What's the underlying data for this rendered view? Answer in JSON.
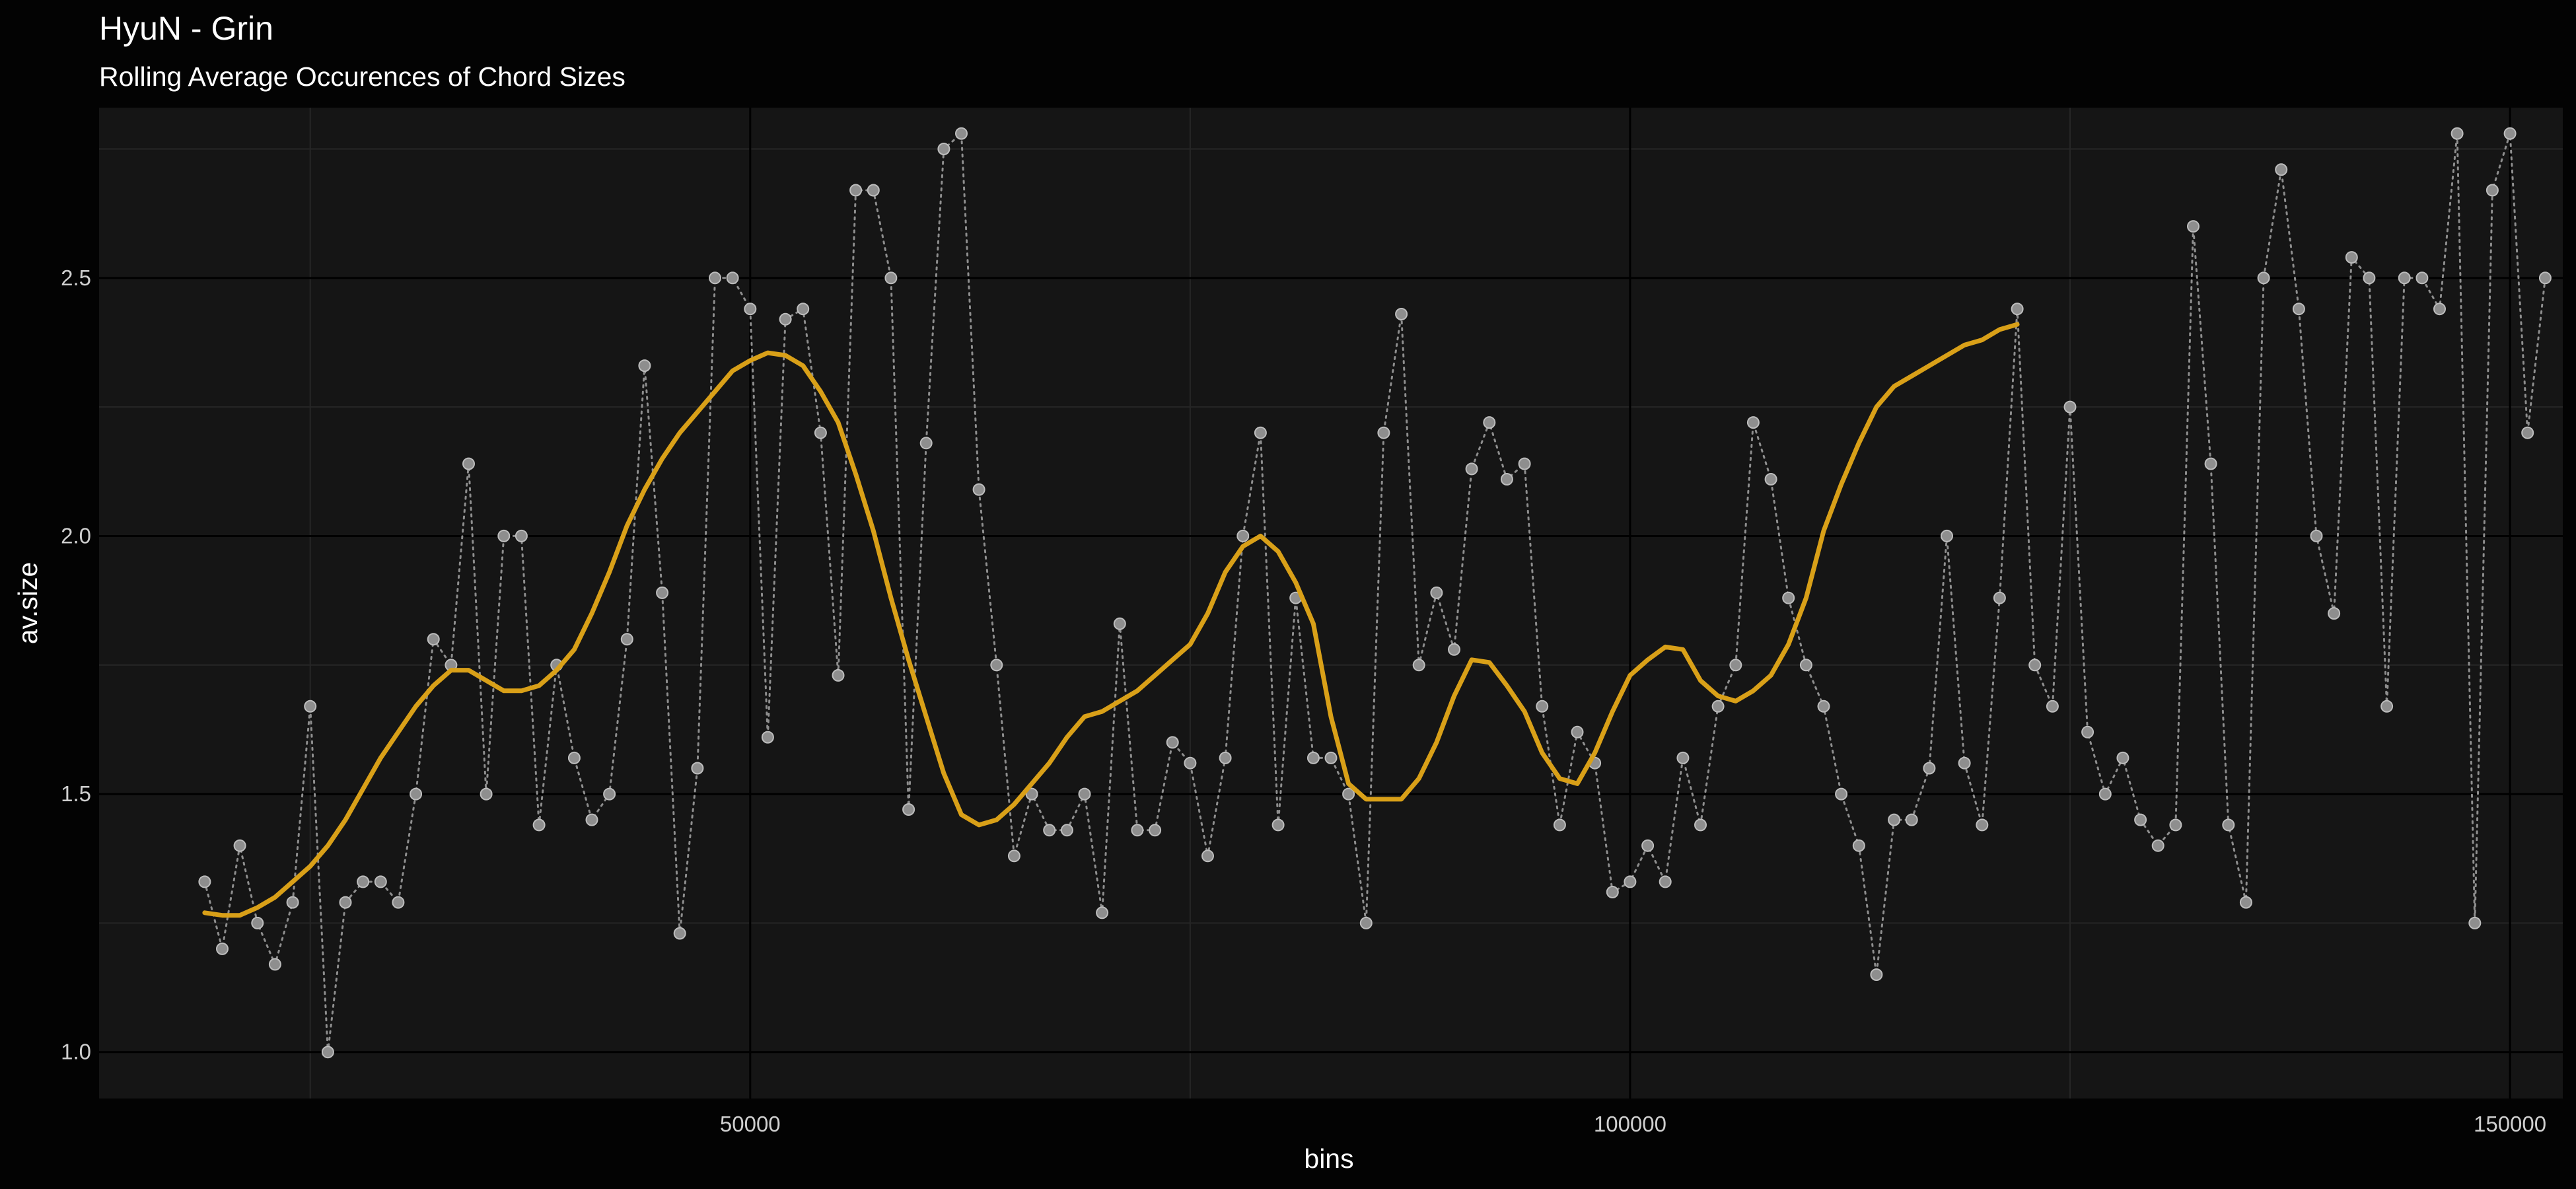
{
  "chart_data": {
    "type": "line",
    "title": "HyuN - Grin",
    "subtitle": "Rolling Average Occurences of Chord Sizes",
    "xlabel": "bins",
    "ylabel": "av.size",
    "xlim": [
      13000,
      153000
    ],
    "ylim": [
      0.91,
      2.83
    ],
    "x_ticks": [
      {
        "value": 50000,
        "label": "50000"
      },
      {
        "value": 100000,
        "label": "100000"
      },
      {
        "value": 150000,
        "label": "150000"
      }
    ],
    "x_minor_ticks": [
      25000,
      75000,
      125000
    ],
    "y_ticks": [
      {
        "value": 1.0,
        "label": "1.0"
      },
      {
        "value": 1.5,
        "label": "1.5"
      },
      {
        "value": 2.0,
        "label": "2.0"
      },
      {
        "value": 2.5,
        "label": "2.5"
      }
    ],
    "y_minor_ticks": [
      1.25,
      1.75,
      2.25,
      2.75
    ],
    "grid": true,
    "theme": {
      "page_background": "#030303",
      "panel_background": "#151515",
      "grid_major": "#000000",
      "grid_minor": "#262626",
      "points_color": "#8e8e8e",
      "smooth_color": "#d9a018"
    },
    "series": [
      {
        "style": "dotted line with points",
        "color": "#8e8e8e",
        "points": [
          [
            19000,
            1.33
          ],
          [
            20000,
            1.2
          ],
          [
            21000,
            1.4
          ],
          [
            22000,
            1.25
          ],
          [
            23000,
            1.17
          ],
          [
            24000,
            1.29
          ],
          [
            25000,
            1.67
          ],
          [
            26000,
            1.0
          ],
          [
            27000,
            1.29
          ],
          [
            28000,
            1.33
          ],
          [
            29000,
            1.33
          ],
          [
            30000,
            1.29
          ],
          [
            31000,
            1.5
          ],
          [
            32000,
            1.8
          ],
          [
            33000,
            1.75
          ],
          [
            34000,
            2.14
          ],
          [
            35000,
            1.5
          ],
          [
            36000,
            2.0
          ],
          [
            37000,
            2.0
          ],
          [
            38000,
            1.44
          ],
          [
            39000,
            1.75
          ],
          [
            40000,
            1.57
          ],
          [
            41000,
            1.45
          ],
          [
            42000,
            1.5
          ],
          [
            43000,
            1.8
          ],
          [
            44000,
            2.33
          ],
          [
            45000,
            1.89
          ],
          [
            46000,
            1.23
          ],
          [
            47000,
            1.55
          ],
          [
            48000,
            2.5
          ],
          [
            49000,
            2.5
          ],
          [
            50000,
            2.44
          ],
          [
            51000,
            1.61
          ],
          [
            52000,
            2.42
          ],
          [
            53000,
            2.44
          ],
          [
            54000,
            2.2
          ],
          [
            55000,
            1.73
          ],
          [
            56000,
            2.67
          ],
          [
            57000,
            2.67
          ],
          [
            58000,
            2.5
          ],
          [
            59000,
            1.47
          ],
          [
            60000,
            2.18
          ],
          [
            61000,
            2.75
          ],
          [
            62000,
            2.78
          ],
          [
            63000,
            2.09
          ],
          [
            64000,
            1.75
          ],
          [
            65000,
            1.38
          ],
          [
            66000,
            1.5
          ],
          [
            67000,
            1.43
          ],
          [
            68000,
            1.43
          ],
          [
            69000,
            1.5
          ],
          [
            70000,
            1.27
          ],
          [
            71000,
            1.83
          ],
          [
            72000,
            1.43
          ],
          [
            73000,
            1.43
          ],
          [
            74000,
            1.6
          ],
          [
            75000,
            1.56
          ],
          [
            76000,
            1.38
          ],
          [
            77000,
            1.57
          ],
          [
            78000,
            2.0
          ],
          [
            79000,
            2.2
          ],
          [
            80000,
            1.44
          ],
          [
            81000,
            1.88
          ],
          [
            82000,
            1.57
          ],
          [
            83000,
            1.57
          ],
          [
            84000,
            1.5
          ],
          [
            85000,
            1.25
          ],
          [
            86000,
            2.2
          ],
          [
            87000,
            2.43
          ],
          [
            88000,
            1.75
          ],
          [
            89000,
            1.89
          ],
          [
            90000,
            1.78
          ],
          [
            91000,
            2.13
          ],
          [
            92000,
            2.22
          ],
          [
            93000,
            2.11
          ],
          [
            94000,
            2.14
          ],
          [
            95000,
            1.67
          ],
          [
            96000,
            1.44
          ],
          [
            97000,
            1.62
          ],
          [
            98000,
            1.56
          ],
          [
            99000,
            1.31
          ],
          [
            100000,
            1.33
          ],
          [
            101000,
            1.4
          ],
          [
            102000,
            1.33
          ],
          [
            103000,
            1.57
          ],
          [
            104000,
            1.44
          ],
          [
            105000,
            1.67
          ],
          [
            106000,
            1.75
          ],
          [
            107000,
            2.22
          ],
          [
            108000,
            2.11
          ],
          [
            109000,
            1.88
          ],
          [
            110000,
            1.75
          ],
          [
            111000,
            1.67
          ],
          [
            112000,
            1.5
          ],
          [
            113000,
            1.4
          ],
          [
            114000,
            1.15
          ],
          [
            115000,
            1.45
          ],
          [
            116000,
            1.45
          ],
          [
            117000,
            1.55
          ],
          [
            118000,
            2.0
          ],
          [
            119000,
            1.56
          ],
          [
            120000,
            1.44
          ],
          [
            121000,
            1.88
          ],
          [
            122000,
            2.44
          ],
          [
            123000,
            1.75
          ],
          [
            124000,
            1.67
          ],
          [
            125000,
            2.25
          ],
          [
            126000,
            1.62
          ],
          [
            127000,
            1.5
          ],
          [
            128000,
            1.57
          ],
          [
            129000,
            1.45
          ],
          [
            130000,
            1.4
          ],
          [
            131000,
            1.44
          ],
          [
            132000,
            2.6
          ],
          [
            133000,
            2.14
          ],
          [
            134000,
            1.44
          ],
          [
            135000,
            1.29
          ],
          [
            136000,
            2.5
          ],
          [
            137000,
            2.71
          ],
          [
            138000,
            2.44
          ],
          [
            139000,
            2.0
          ],
          [
            140000,
            1.85
          ],
          [
            141000,
            2.54
          ],
          [
            142000,
            2.5
          ],
          [
            143000,
            1.67
          ],
          [
            144000,
            2.5
          ],
          [
            145000,
            2.5
          ],
          [
            146000,
            2.44
          ],
          [
            147000,
            2.78
          ],
          [
            148000,
            1.25
          ],
          [
            149000,
            2.67
          ],
          [
            150000,
            2.78
          ],
          [
            151000,
            2.2
          ],
          [
            152000,
            2.5
          ]
        ]
      },
      {
        "style": "smoothed solid line",
        "color": "#d9a018",
        "points": [
          [
            19000,
            1.27
          ],
          [
            20000,
            1.265
          ],
          [
            21000,
            1.265
          ],
          [
            22000,
            1.28
          ],
          [
            23000,
            1.3
          ],
          [
            24000,
            1.33
          ],
          [
            25000,
            1.36
          ],
          [
            26000,
            1.4
          ],
          [
            27000,
            1.45
          ],
          [
            28000,
            1.51
          ],
          [
            29000,
            1.57
          ],
          [
            30000,
            1.62
          ],
          [
            31000,
            1.67
          ],
          [
            32000,
            1.71
          ],
          [
            33000,
            1.74
          ],
          [
            34000,
            1.74
          ],
          [
            35000,
            1.72
          ],
          [
            36000,
            1.7
          ],
          [
            37000,
            1.7
          ],
          [
            38000,
            1.71
          ],
          [
            39000,
            1.74
          ],
          [
            40000,
            1.78
          ],
          [
            41000,
            1.85
          ],
          [
            42000,
            1.93
          ],
          [
            43000,
            2.02
          ],
          [
            44000,
            2.09
          ],
          [
            45000,
            2.15
          ],
          [
            46000,
            2.2
          ],
          [
            47000,
            2.24
          ],
          [
            48000,
            2.28
          ],
          [
            49000,
            2.32
          ],
          [
            50000,
            2.34
          ],
          [
            51000,
            2.355
          ],
          [
            52000,
            2.35
          ],
          [
            53000,
            2.33
          ],
          [
            54000,
            2.28
          ],
          [
            55000,
            2.22
          ],
          [
            56000,
            2.12
          ],
          [
            57000,
            2.01
          ],
          [
            58000,
            1.88
          ],
          [
            59000,
            1.76
          ],
          [
            60000,
            1.65
          ],
          [
            61000,
            1.54
          ],
          [
            62000,
            1.46
          ],
          [
            63000,
            1.44
          ],
          [
            64000,
            1.45
          ],
          [
            65000,
            1.48
          ],
          [
            66000,
            1.52
          ],
          [
            67000,
            1.56
          ],
          [
            68000,
            1.61
          ],
          [
            69000,
            1.65
          ],
          [
            70000,
            1.66
          ],
          [
            71000,
            1.68
          ],
          [
            72000,
            1.7
          ],
          [
            73000,
            1.73
          ],
          [
            74000,
            1.76
          ],
          [
            75000,
            1.79
          ],
          [
            76000,
            1.85
          ],
          [
            77000,
            1.93
          ],
          [
            78000,
            1.98
          ],
          [
            79000,
            2.0
          ],
          [
            80000,
            1.97
          ],
          [
            81000,
            1.91
          ],
          [
            82000,
            1.83
          ],
          [
            83000,
            1.65
          ],
          [
            84000,
            1.52
          ],
          [
            85000,
            1.49
          ],
          [
            86000,
            1.49
          ],
          [
            87000,
            1.49
          ],
          [
            88000,
            1.53
          ],
          [
            89000,
            1.6
          ],
          [
            90000,
            1.69
          ],
          [
            91000,
            1.76
          ],
          [
            92000,
            1.755
          ],
          [
            93000,
            1.71
          ],
          [
            94000,
            1.66
          ],
          [
            95000,
            1.58
          ],
          [
            96000,
            1.53
          ],
          [
            97000,
            1.52
          ],
          [
            98000,
            1.58
          ],
          [
            99000,
            1.66
          ],
          [
            100000,
            1.73
          ],
          [
            101000,
            1.76
          ],
          [
            102000,
            1.785
          ],
          [
            103000,
            1.78
          ],
          [
            104000,
            1.72
          ],
          [
            105000,
            1.69
          ],
          [
            106000,
            1.68
          ],
          [
            107000,
            1.7
          ],
          [
            108000,
            1.73
          ],
          [
            109000,
            1.79
          ],
          [
            110000,
            1.88
          ],
          [
            111000,
            2.01
          ],
          [
            112000,
            2.1
          ],
          [
            113000,
            2.18
          ],
          [
            114000,
            2.25
          ],
          [
            115000,
            2.29
          ],
          [
            116000,
            2.31
          ],
          [
            117000,
            2.33
          ],
          [
            118000,
            2.35
          ],
          [
            119000,
            2.37
          ],
          [
            120000,
            2.38
          ],
          [
            121000,
            2.4
          ],
          [
            122000,
            2.41
          ]
        ]
      }
    ]
  }
}
